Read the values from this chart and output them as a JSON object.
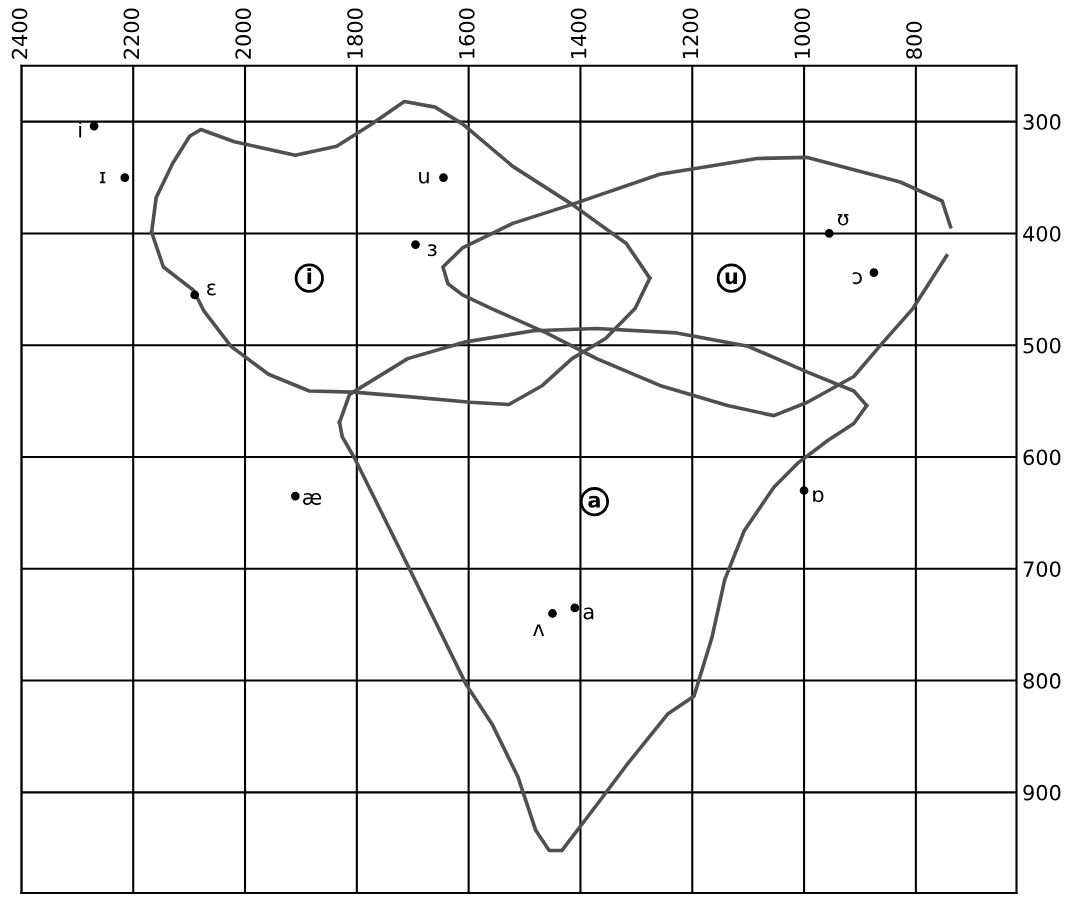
{
  "chart_data": {
    "type": "line",
    "xlim": [
      2400,
      620
    ],
    "ylim": [
      990,
      250
    ],
    "xticks": [
      2400,
      2200,
      2000,
      1800,
      1600,
      1400,
      1200,
      1000,
      800
    ],
    "yticks": [
      300,
      400,
      500,
      600,
      700,
      800,
      900
    ],
    "grid": true,
    "marker": "none",
    "line_style": "solid",
    "series": [
      {
        "color": "#505050",
        "x": [
          2167,
          2159,
          2129,
          2099,
          2079,
          2019,
          1910,
          1836,
          1776,
          1715,
          1660,
          1611,
          1521,
          1415,
          1318,
          1276
        ],
        "values": [
          399,
          368,
          337,
          313,
          307,
          318,
          330,
          322,
          303,
          282,
          287,
          302,
          340,
          374,
          409,
          440
        ]
      },
      {
        "color": "#505050",
        "x": [
          1276,
          1302,
          1355,
          1415,
          1468,
          1528,
          1597,
          1709,
          1806,
          1885,
          1958,
          2025,
          2074,
          2092,
          2146,
          2167
        ],
        "values": [
          440,
          467,
          494,
          512,
          536,
          553,
          551,
          546,
          542,
          541,
          526,
          501,
          469,
          451,
          430,
          399
        ]
      },
      {
        "color": "#505050",
        "x": [
          745,
          805,
          858,
          911,
          994,
          1054,
          1137,
          1258,
          1371,
          1461,
          1560,
          1611,
          1637,
          1646,
          1611,
          1521,
          1415,
          1258,
          1084,
          994,
          828,
          753,
          738
        ],
        "values": [
          420,
          467,
          497,
          528,
          551,
          563,
          554,
          536,
          512,
          489,
          467,
          455,
          445,
          430,
          413,
          391,
          374,
          347,
          333,
          332,
          354,
          371,
          394
        ]
      },
      {
        "color": "#505050",
        "x": [
          1831,
          1813,
          1709,
          1605,
          1484,
          1371,
          1228,
          1100,
          994,
          911,
          888
        ],
        "values": [
          569,
          544,
          512,
          497,
          487,
          485,
          489,
          501,
          524,
          541,
          554
        ]
      },
      {
        "color": "#505050",
        "x": [
          888,
          911,
          957,
          1010,
          1054,
          1107,
          1142,
          1165,
          1197,
          1244,
          1315,
          1369,
          1433,
          1456,
          1480,
          1512,
          1558,
          1605,
          1700,
          1803,
          1826,
          1831
        ],
        "values": [
          554,
          570,
          585,
          605,
          627,
          666,
          710,
          762,
          814,
          830,
          874,
          910,
          952,
          952,
          934,
          886,
          839,
          803,
          706,
          602,
          582,
          569
        ]
      },
      {
        "type": "scatter",
        "color": "#000000",
        "marker": "circle",
        "x": [
          2270,
          2215,
          1645,
          1695,
          2090,
          1910,
          955,
          875,
          1000,
          1450,
          1410
        ],
        "values": [
          304,
          350,
          350,
          410,
          455,
          635,
          400,
          435,
          630,
          740,
          735
        ]
      }
    ],
    "annotations": [
      {
        "text": "i",
        "x": 2270,
        "y": 304
      },
      {
        "text": "ɪ",
        "x": 2215,
        "y": 350
      },
      {
        "text": "u",
        "x": 1645,
        "y": 350
      },
      {
        "text": "ɜ",
        "x": 1695,
        "y": 410
      },
      {
        "text": "ɛ",
        "x": 2090,
        "y": 455
      },
      {
        "text": "æ",
        "x": 1910,
        "y": 635
      },
      {
        "text": "ʊ",
        "x": 955,
        "y": 400
      },
      {
        "text": "ɔ",
        "x": 875,
        "y": 435
      },
      {
        "text": "ɒ",
        "x": 1000,
        "y": 630
      },
      {
        "text": "ʌ",
        "x": 1450,
        "y": 740
      },
      {
        "text": "a",
        "x": 1410,
        "y": 735
      },
      {
        "text": "i",
        "x": 1885,
        "y": 440
      },
      {
        "text": "u",
        "x": 1130,
        "y": 440
      },
      {
        "text": "a",
        "x": 1375,
        "y": 640
      }
    ]
  }
}
